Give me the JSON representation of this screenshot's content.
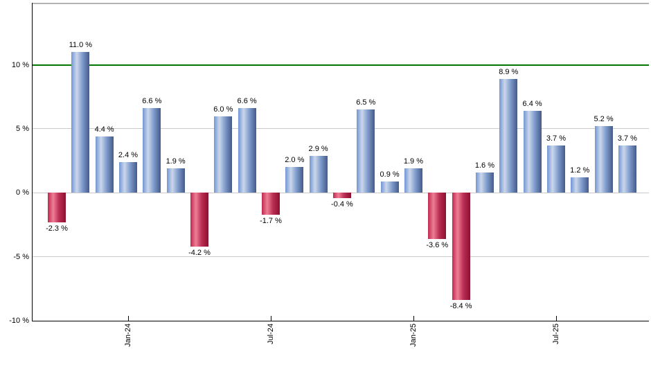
{
  "chart_data": {
    "type": "bar",
    "title": "",
    "values": [
      -2.3,
      11.0,
      4.4,
      2.4,
      6.6,
      1.9,
      -4.2,
      6.0,
      6.6,
      -1.7,
      2.0,
      2.9,
      -0.4,
      6.5,
      0.9,
      1.9,
      -3.6,
      -8.4,
      1.6,
      8.9,
      6.4,
      3.7,
      1.2,
      5.2,
      3.7
    ],
    "value_labels": [
      "-2.3 %",
      "11.0 %",
      "4.4 %",
      "2.4 %",
      "6.6 %",
      "1.9 %",
      "-4.2 %",
      "6.0 %",
      "6.6 %",
      "-1.7 %",
      "2.0 %",
      "2.9 %",
      "-0.4 %",
      "6.5 %",
      "0.9 %",
      "1.9 %",
      "-3.6 %",
      "-8.4 %",
      "1.6 %",
      "8.9 %",
      "6.4 %",
      "3.7 %",
      "1.2 %",
      "5.2 %",
      "3.7 %"
    ],
    "x_axis": {
      "ticks": [
        {
          "index": 3,
          "label": "Jan-24"
        },
        {
          "index": 9,
          "label": "Jul-24"
        },
        {
          "index": 15,
          "label": "Jan-25"
        },
        {
          "index": 21,
          "label": "Jul-25"
        }
      ]
    },
    "y_axis": {
      "range": [
        -10,
        14.8
      ],
      "ticks": [
        {
          "value": 10,
          "label": "10 %",
          "grid": false
        },
        {
          "value": 5,
          "label": "5 %",
          "grid": true
        },
        {
          "value": 0,
          "label": "0 %",
          "grid": true
        },
        {
          "value": -5,
          "label": "-5 %",
          "grid": true
        },
        {
          "value": -10,
          "label": "-10 %",
          "grid": false
        }
      ]
    },
    "threshold_line": {
      "value": 10,
      "color": "#007800"
    },
    "legend": "none",
    "colors": {
      "positive_gradient": [
        "#7296d2",
        "#cbd7ec",
        "#7e9bcc",
        "#455a88"
      ],
      "negative_gradient": [
        "#bf2950",
        "#ee7e95",
        "#bb2e55",
        "#8c102f"
      ],
      "gridline": "#c9c9c9",
      "axis": "#000000",
      "top_border": "#b3b3b3",
      "label_text": "#000000",
      "background": "#ffffff"
    }
  }
}
